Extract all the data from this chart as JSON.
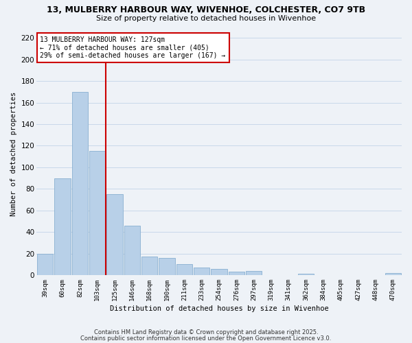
{
  "title": "13, MULBERRY HARBOUR WAY, WIVENHOE, COLCHESTER, CO7 9TB",
  "subtitle": "Size of property relative to detached houses in Wivenhoe",
  "xlabel": "Distribution of detached houses by size in Wivenhoe",
  "ylabel": "Number of detached properties",
  "bar_labels": [
    "39sqm",
    "60sqm",
    "82sqm",
    "103sqm",
    "125sqm",
    "146sqm",
    "168sqm",
    "190sqm",
    "211sqm",
    "233sqm",
    "254sqm",
    "276sqm",
    "297sqm",
    "319sqm",
    "341sqm",
    "362sqm",
    "384sqm",
    "405sqm",
    "427sqm",
    "448sqm",
    "470sqm"
  ],
  "bar_values": [
    20,
    90,
    170,
    115,
    75,
    46,
    17,
    16,
    10,
    7,
    6,
    3,
    4,
    0,
    0,
    1,
    0,
    0,
    0,
    0,
    2
  ],
  "bar_color": "#b8d0e8",
  "bar_edge_color": "#88afd0",
  "vline_color": "#cc0000",
  "annotation_line1": "13 MULBERRY HARBOUR WAY: 127sqm",
  "annotation_line2": "← 71% of detached houses are smaller (405)",
  "annotation_line3": "29% of semi-detached houses are larger (167) →",
  "annotation_box_color": "#ffffff",
  "annotation_box_edge": "#cc0000",
  "ylim": [
    0,
    225
  ],
  "yticks": [
    0,
    20,
    40,
    60,
    80,
    100,
    120,
    140,
    160,
    180,
    200,
    220
  ],
  "grid_color": "#c8d8ea",
  "bg_color": "#eef2f7",
  "footer1": "Contains HM Land Registry data © Crown copyright and database right 2025.",
  "footer2": "Contains public sector information licensed under the Open Government Licence v3.0."
}
